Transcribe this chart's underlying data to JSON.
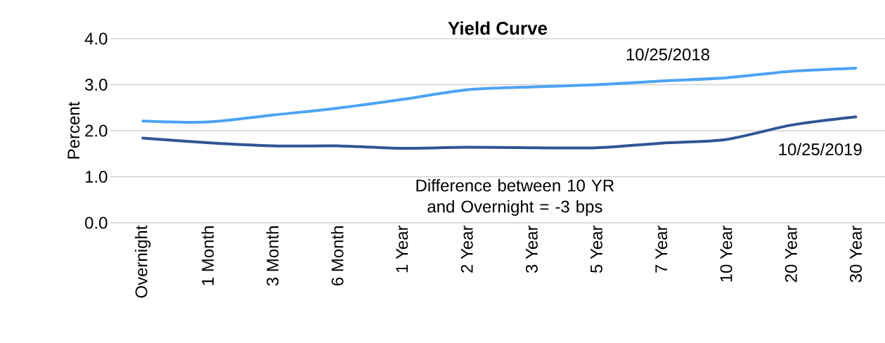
{
  "chart_data": {
    "type": "line",
    "title": "Yield Curve",
    "ylabel": "Percent",
    "categories": [
      "Overnight",
      "1 Month",
      "3 Month",
      "6 Month",
      "1 Year",
      "2 Year",
      "3 Year",
      "5 Year",
      "7 Year",
      "10 Year",
      "20 Year",
      "30 Year"
    ],
    "series": [
      {
        "name": "10/25/2018",
        "color": "#4da3f5",
        "values": [
          2.21,
          2.19,
          2.34,
          2.49,
          2.68,
          2.89,
          2.95,
          3.0,
          3.08,
          3.15,
          3.29,
          3.36
        ]
      },
      {
        "name": "10/25/2019",
        "color": "#2f5597",
        "values": [
          1.84,
          1.74,
          1.67,
          1.67,
          1.62,
          1.64,
          1.63,
          1.63,
          1.73,
          1.81,
          2.12,
          2.3
        ]
      }
    ],
    "annotations": [
      "Difference between 10 YR and Overnight = -3 bps"
    ],
    "ylim": [
      0,
      4
    ],
    "yticks": [
      {
        "value": 0,
        "label": "0.0"
      },
      {
        "value": 1,
        "label": "1.0"
      },
      {
        "value": 2,
        "label": "2.0"
      },
      {
        "value": 3,
        "label": "3.0"
      },
      {
        "value": 4,
        "label": "4.0"
      }
    ],
    "grid": "y",
    "legend": false,
    "marker": "none",
    "line_style": "solid"
  }
}
